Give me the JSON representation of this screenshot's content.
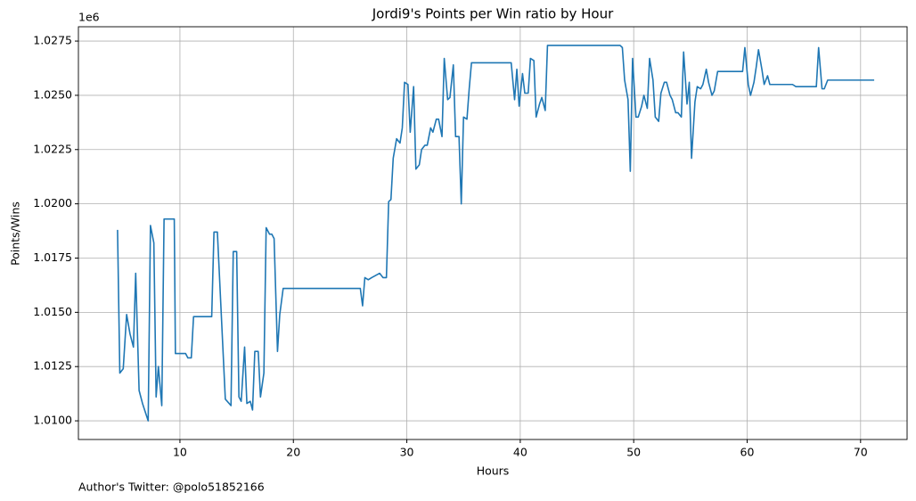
{
  "chart_data": {
    "type": "line",
    "title": "Jordi9's Points per Win ratio by Hour",
    "x_label": "Hours",
    "y_label": "Points/Wins",
    "y_offset_label": "1e6",
    "footnote": "Author's Twitter: @polo51852166",
    "color": "#1f77b4",
    "grid": true,
    "xlim": [
      1.05,
      74.1
    ],
    "ylim": [
      1.00914,
      1.02816
    ],
    "xticks": [
      10,
      20,
      30,
      40,
      50,
      60,
      70
    ],
    "yticks": [
      {
        "value": 1.01,
        "label": "1.0100"
      },
      {
        "value": 1.0125,
        "label": "1.0125"
      },
      {
        "value": 1.015,
        "label": "1.0150"
      },
      {
        "value": 1.0175,
        "label": "1.0175"
      },
      {
        "value": 1.02,
        "label": "1.0200"
      },
      {
        "value": 1.0225,
        "label": "1.0225"
      },
      {
        "value": 1.025,
        "label": "1.0250"
      },
      {
        "value": 1.0275,
        "label": "1.0275"
      }
    ],
    "x": [
      4.5,
      4.7,
      5.0,
      5.3,
      5.6,
      5.9,
      6.1,
      6.4,
      6.7,
      7.2,
      7.4,
      7.7,
      7.9,
      8.1,
      8.4,
      8.6,
      9.5,
      9.6,
      10.5,
      10.7,
      11.0,
      11.2,
      12.8,
      13.0,
      13.3,
      14.0,
      14.5,
      14.7,
      15.0,
      15.2,
      15.4,
      15.7,
      15.9,
      16.2,
      16.4,
      16.6,
      16.9,
      17.1,
      17.4,
      17.6,
      17.9,
      18.1,
      18.3,
      18.6,
      18.8,
      19.1,
      25.9,
      26.1,
      26.3,
      26.6,
      26.9,
      27.6,
      27.9,
      28.2,
      28.4,
      28.6,
      28.8,
      29.1,
      29.4,
      29.6,
      29.8,
      30.1,
      30.3,
      30.6,
      30.8,
      31.1,
      31.3,
      31.6,
      31.8,
      32.1,
      32.3,
      32.6,
      32.8,
      33.1,
      33.3,
      33.6,
      33.8,
      34.1,
      34.3,
      34.6,
      34.8,
      35.0,
      35.3,
      35.5,
      35.7,
      39.2,
      39.5,
      39.7,
      39.9,
      40.2,
      40.4,
      40.7,
      40.9,
      41.2,
      41.4,
      41.7,
      41.9,
      42.2,
      42.4,
      48.8,
      49.0,
      49.2,
      49.5,
      49.7,
      49.9,
      50.2,
      50.4,
      50.7,
      50.9,
      51.2,
      51.4,
      51.7,
      51.9,
      52.2,
      52.4,
      52.7,
      52.9,
      53.2,
      53.4,
      53.7,
      53.9,
      54.2,
      54.4,
      54.7,
      54.9,
      55.1,
      55.4,
      55.6,
      55.9,
      56.1,
      56.4,
      56.6,
      56.9,
      57.1,
      57.4,
      59.6,
      59.8,
      60.1,
      60.3,
      60.6,
      60.8,
      61.0,
      61.3,
      61.5,
      61.8,
      62.0,
      64.0,
      64.3,
      65.9,
      66.1,
      66.3,
      66.6,
      66.8,
      67.1,
      71.2
    ],
    "values": [
      1.0188,
      1.0122,
      1.0124,
      1.0149,
      1.014,
      1.0134,
      1.0168,
      1.0114,
      1.0108,
      1.01,
      1.019,
      1.0182,
      1.0111,
      1.0125,
      1.0107,
      1.0193,
      1.0193,
      1.0131,
      1.0131,
      1.0129,
      1.0129,
      1.0148,
      1.0148,
      1.0187,
      1.0187,
      1.011,
      1.0107,
      1.0178,
      1.0178,
      1.0111,
      1.0109,
      1.0134,
      1.0108,
      1.0109,
      1.0105,
      1.0132,
      1.0132,
      1.0111,
      1.0122,
      1.0189,
      1.0186,
      1.0186,
      1.0184,
      1.0132,
      1.0149,
      1.0161,
      1.0161,
      1.0153,
      1.0166,
      1.0165,
      1.0166,
      1.0168,
      1.0166,
      1.0166,
      1.0201,
      1.0202,
      1.0221,
      1.023,
      1.0228,
      1.0235,
      1.0256,
      1.0255,
      1.0233,
      1.0254,
      1.0216,
      1.0218,
      1.0225,
      1.0227,
      1.0227,
      1.0235,
      1.0233,
      1.0239,
      1.0239,
      1.0231,
      1.0267,
      1.0248,
      1.0249,
      1.0264,
      1.0231,
      1.0231,
      1.02,
      1.024,
      1.0239,
      1.0253,
      1.0265,
      1.0265,
      1.0248,
      1.0262,
      1.0245,
      1.026,
      1.0251,
      1.0251,
      1.0267,
      1.0266,
      1.024,
      1.0246,
      1.0249,
      1.0243,
      1.0273,
      1.0273,
      1.0272,
      1.0257,
      1.0248,
      1.0215,
      1.0267,
      1.024,
      1.024,
      1.0245,
      1.025,
      1.0244,
      1.0267,
      1.0257,
      1.024,
      1.0238,
      1.0251,
      1.0256,
      1.0256,
      1.025,
      1.0248,
      1.0242,
      1.0242,
      1.024,
      1.027,
      1.0246,
      1.0256,
      1.0221,
      1.0247,
      1.0254,
      1.0253,
      1.0255,
      1.0262,
      1.0256,
      1.025,
      1.0252,
      1.0261,
      1.0261,
      1.0272,
      1.0255,
      1.025,
      1.0256,
      1.0263,
      1.0271,
      1.0262,
      1.0255,
      1.0259,
      1.0255,
      1.0255,
      1.0254,
      1.0254,
      1.0254,
      1.0272,
      1.0253,
      1.0253,
      1.0257,
      1.0257
    ]
  }
}
